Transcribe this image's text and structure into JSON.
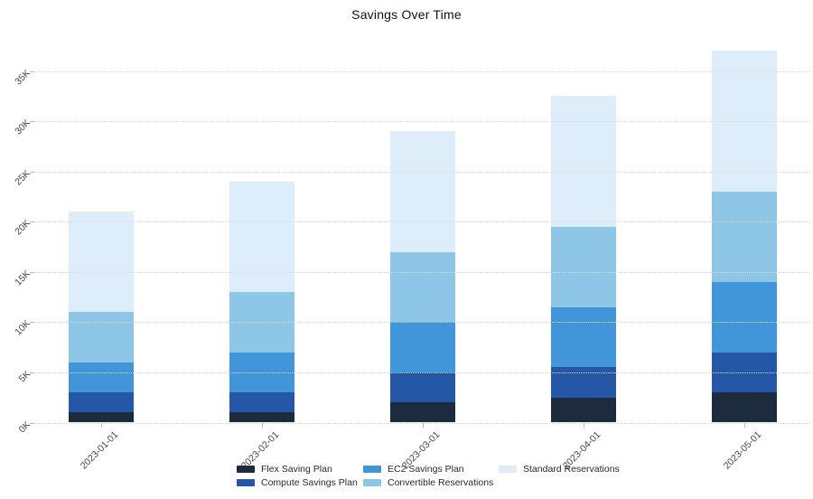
{
  "chart_data": {
    "type": "bar",
    "stacked": true,
    "title": "Savings Over Time",
    "categories": [
      "2023-01-01",
      "2023-02-01",
      "2023-03-01",
      "2023-04-01",
      "2023-05-01"
    ],
    "series": [
      {
        "name": "Flex Saving Plan",
        "color": "#1c2b3e",
        "values_k": [
          1,
          1,
          2,
          2.5,
          3
        ]
      },
      {
        "name": "Compute Savings Plan",
        "color": "#2458a6",
        "values_k": [
          2,
          2,
          3,
          3,
          4
        ]
      },
      {
        "name": "EC2 Savings Plan",
        "color": "#4096d8",
        "values_k": [
          3,
          4,
          5,
          6,
          7
        ]
      },
      {
        "name": "Convertible Reservations",
        "color": "#8ec6e8",
        "values_k": [
          5,
          6,
          7,
          8,
          9
        ]
      },
      {
        "name": "Standard Reservations",
        "color": "#ddeefa",
        "values_k": [
          10,
          11,
          12,
          13,
          14
        ]
      }
    ],
    "totals_k": [
      21,
      24,
      29,
      32.5,
      37
    ],
    "xlabel": "",
    "ylabel": "",
    "yticks": [
      "0K",
      "5K",
      "10K",
      "15K",
      "20K",
      "25K",
      "30K",
      "35K"
    ],
    "ytick_step_k": 5,
    "ylim_k": [
      0,
      38.5
    ],
    "grid": "horizontal dotted, layered above bars",
    "tick_label_rotation_deg": -45,
    "legend_position": "bottom",
    "legend_columns": [
      [
        0,
        1
      ],
      [
        2,
        3
      ],
      [
        4
      ]
    ],
    "background_color": "#ffffff",
    "grid_color": "#dcdcdc",
    "tick_text_color": "#444444",
    "title_color": "#111111"
  }
}
